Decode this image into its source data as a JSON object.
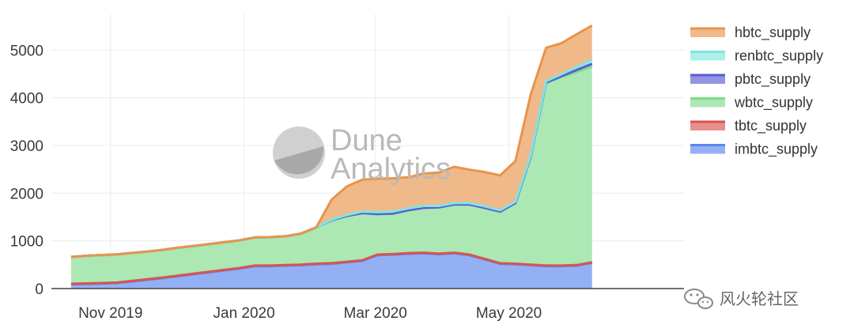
{
  "chart_data": {
    "type": "area",
    "stacked": true,
    "x": [
      "2019-10-14",
      "2019-10-21",
      "2019-10-28",
      "2019-11-04",
      "2019-11-11",
      "2019-11-18",
      "2019-11-25",
      "2019-12-02",
      "2019-12-09",
      "2019-12-16",
      "2019-12-23",
      "2019-12-30",
      "2020-01-06",
      "2020-01-13",
      "2020-01-20",
      "2020-01-27",
      "2020-02-03",
      "2020-02-10",
      "2020-02-17",
      "2020-02-24",
      "2020-03-02",
      "2020-03-09",
      "2020-03-16",
      "2020-03-23",
      "2020-03-30",
      "2020-04-06",
      "2020-04-13",
      "2020-04-20",
      "2020-04-27",
      "2020-05-04",
      "2020-05-11",
      "2020-05-18",
      "2020-05-25",
      "2020-06-01",
      "2020-06-08"
    ],
    "series": [
      {
        "name": "imbtc_supply",
        "color": "#5b86f0",
        "values": [
          90,
          95,
          105,
          115,
          150,
          185,
          220,
          260,
          300,
          340,
          380,
          420,
          470,
          470,
          480,
          490,
          510,
          520,
          550,
          580,
          700,
          710,
          730,
          740,
          720,
          740,
          700,
          610,
          520,
          510,
          490,
          470,
          470,
          480,
          540
        ]
      },
      {
        "name": "tbtc_supply",
        "color": "#d9534f",
        "values": [
          12,
          12,
          12,
          12,
          12,
          12,
          12,
          12,
          12,
          12,
          12,
          12,
          12,
          12,
          12,
          12,
          12,
          12,
          12,
          12,
          12,
          12,
          12,
          12,
          12,
          12,
          12,
          12,
          12,
          12,
          12,
          12,
          12,
          12,
          12
        ]
      },
      {
        "name": "wbtc_supply",
        "color": "#7ddc8a",
        "values": [
          560,
          580,
          585,
          590,
          585,
          580,
          580,
          585,
          580,
          580,
          580,
          580,
          590,
          595,
          605,
          650,
          760,
          900,
          960,
          990,
          850,
          850,
          900,
          940,
          970,
          1010,
          1050,
          1070,
          1080,
          1270,
          2270,
          3830,
          3950,
          4050,
          4100
        ]
      },
      {
        "name": "pbtc_supply",
        "color": "#5b5bd6",
        "values": [
          0,
          0,
          0,
          0,
          0,
          0,
          0,
          0,
          0,
          0,
          0,
          0,
          0,
          0,
          0,
          0,
          0,
          0,
          0,
          0,
          0,
          0,
          0,
          0,
          0,
          0,
          0,
          0,
          0,
          0,
          0,
          5,
          20,
          40,
          60
        ]
      },
      {
        "name": "renbtc_supply",
        "color": "#7fe6e0",
        "values": [
          0,
          0,
          0,
          0,
          0,
          0,
          0,
          0,
          0,
          0,
          0,
          0,
          0,
          0,
          0,
          0,
          0,
          10,
          20,
          30,
          40,
          40,
          40,
          40,
          30,
          30,
          30,
          30,
          30,
          30,
          30,
          30,
          40,
          60,
          80
        ]
      },
      {
        "name": "hbtc_supply",
        "color": "#e8944a",
        "values": [
          0,
          0,
          0,
          0,
          0,
          0,
          0,
          0,
          0,
          0,
          0,
          0,
          0,
          0,
          0,
          0,
          0,
          420,
          600,
          670,
          700,
          700,
          650,
          680,
          700,
          760,
          700,
          720,
          730,
          850,
          1270,
          700,
          650,
          690,
          720
        ]
      }
    ],
    "x_ticks": [
      {
        "date": "2019-11-01",
        "label": "Nov 2019"
      },
      {
        "date": "2020-01-01",
        "label": "Jan 2020"
      },
      {
        "date": "2020-03-01",
        "label": "Mar 2020"
      },
      {
        "date": "2020-05-01",
        "label": "May 2020"
      }
    ],
    "xlim": [
      "2019-10-05",
      "2020-07-20"
    ],
    "ylim": [
      0,
      5750
    ],
    "y_ticks": [
      0,
      1000,
      2000,
      3000,
      4000,
      5000
    ],
    "grid": true,
    "legend_placement": "right",
    "legend_order": [
      "hbtc_supply",
      "renbtc_supply",
      "pbtc_supply",
      "wbtc_supply",
      "tbtc_supply",
      "imbtc_supply"
    ]
  },
  "watermark": {
    "line1": "Dune",
    "line2": "Analytics"
  },
  "corner_badge": {
    "icon": "wechat-icon",
    "text": "风火轮社区"
  }
}
